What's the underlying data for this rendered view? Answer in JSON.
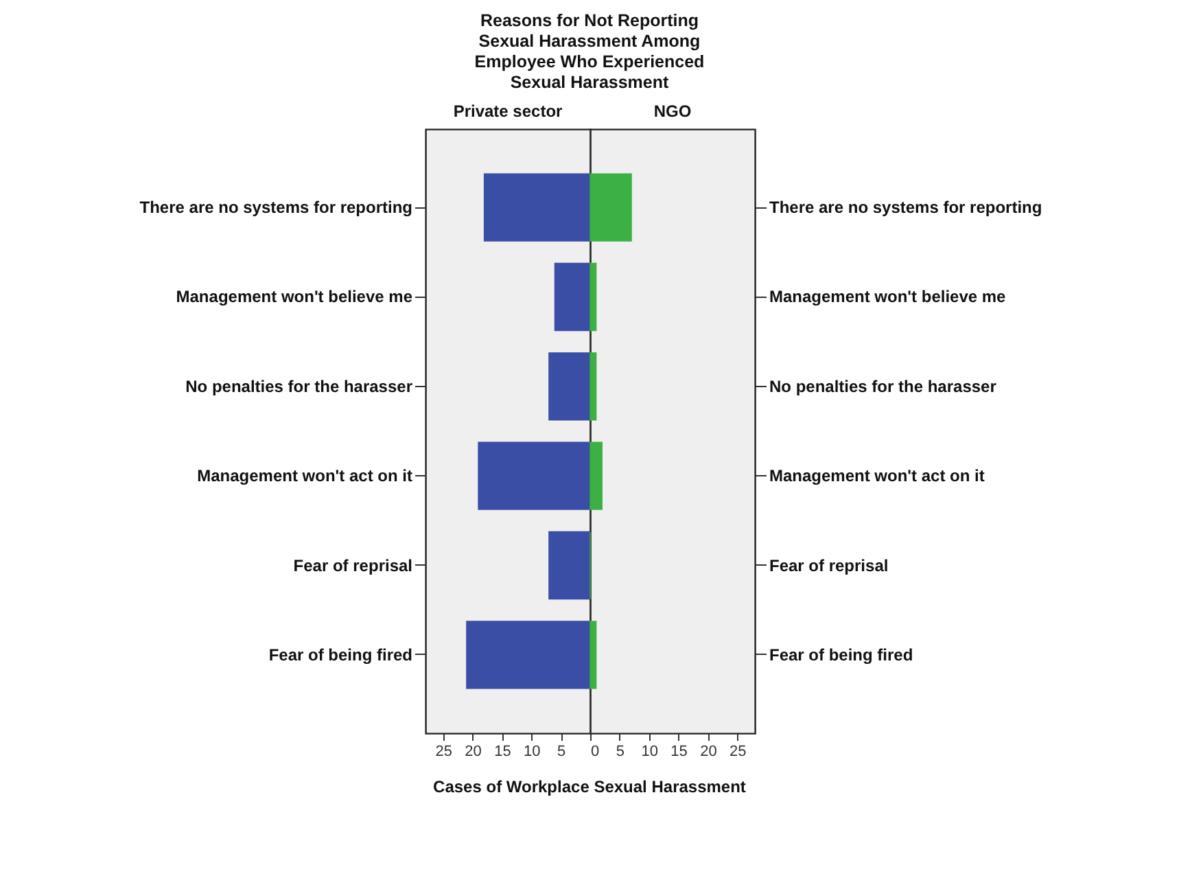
{
  "chart_data": [
    {
      "type": "bar",
      "orientation": "horizontal",
      "title": "Reasons for Not Reporting Sexual Harassment Among Employee Who Experienced Sexual Harassment",
      "xlabel": "Cases of Workplace Sexual Harassment",
      "categories": [
        "There are no systems for reporting",
        "Management won't believe me",
        "No penalties for the harasser",
        "Management won't act on it",
        "Fear of reprisal",
        "Fear of being fired"
      ],
      "series": [
        {
          "name": "Private sector",
          "color": "#3a4ea6",
          "values": [
            18,
            6,
            7,
            19,
            7,
            21
          ]
        }
      ],
      "xlim": [
        28,
        0
      ],
      "xticks": [
        25,
        20,
        15,
        10,
        5
      ]
    },
    {
      "type": "bar",
      "orientation": "horizontal",
      "categories": [
        "There are no systems for reporting",
        "Management won't believe me",
        "No penalties for the harasser",
        "Management won't act on it",
        "Fear of reprisal",
        "Fear of being fired"
      ],
      "series": [
        {
          "name": "NGO",
          "color": "#3cb044",
          "values": [
            7,
            1,
            1,
            2,
            0,
            1
          ]
        }
      ],
      "xlim": [
        0,
        28
      ],
      "xticks": [
        0,
        5,
        10,
        15,
        20,
        25
      ]
    }
  ]
}
